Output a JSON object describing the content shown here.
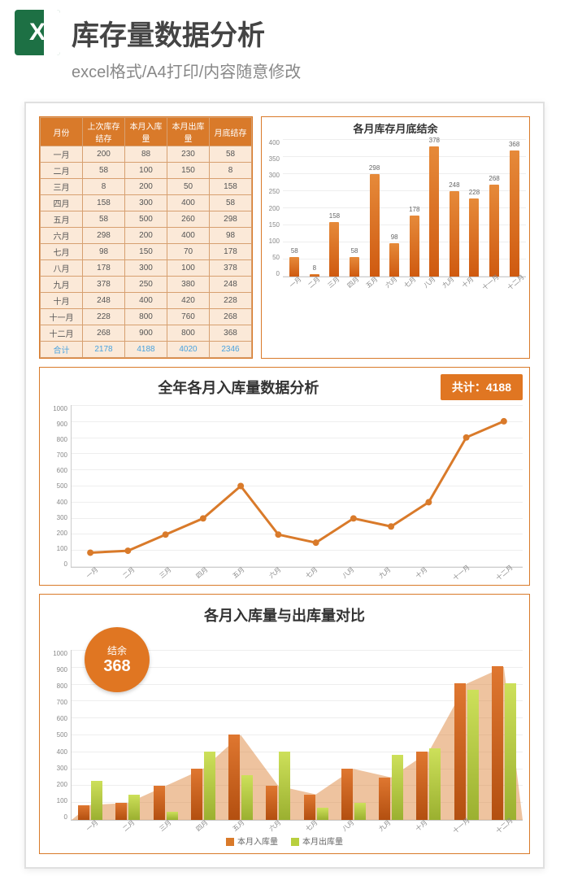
{
  "header": {
    "icon_letter": "X",
    "title": "库存量数据分析",
    "subtitle": "excel格式/A4打印/内容随意修改"
  },
  "table": {
    "columns": [
      "月份",
      "上次库存结存",
      "本月入库量",
      "本月出库量",
      "月底结存"
    ],
    "rows": [
      [
        "一月",
        "200",
        "88",
        "230",
        "58"
      ],
      [
        "二月",
        "58",
        "100",
        "150",
        "8"
      ],
      [
        "三月",
        "8",
        "200",
        "50",
        "158"
      ],
      [
        "四月",
        "158",
        "300",
        "400",
        "58"
      ],
      [
        "五月",
        "58",
        "500",
        "260",
        "298"
      ],
      [
        "六月",
        "298",
        "200",
        "400",
        "98"
      ],
      [
        "七月",
        "98",
        "150",
        "70",
        "178"
      ],
      [
        "八月",
        "178",
        "300",
        "100",
        "378"
      ],
      [
        "九月",
        "378",
        "250",
        "380",
        "248"
      ],
      [
        "十月",
        "248",
        "400",
        "420",
        "228"
      ],
      [
        "十一月",
        "228",
        "800",
        "760",
        "268"
      ],
      [
        "十二月",
        "268",
        "900",
        "800",
        "368"
      ]
    ],
    "total_row": [
      "合计",
      "2178",
      "4188",
      "4020",
      "2346"
    ]
  },
  "chart1": {
    "title": "各月库存月底结余",
    "type": "bar",
    "categories": [
      "一月",
      "二月",
      "三月",
      "四月",
      "五月",
      "六月",
      "七月",
      "八月",
      "九月",
      "十月",
      "十一月",
      "十二月"
    ],
    "values": [
      58,
      8,
      158,
      58,
      298,
      98,
      178,
      378,
      248,
      228,
      268,
      368
    ],
    "ymax": 400,
    "ytick_step": 50,
    "bar_color": "#d9752a",
    "grid_color": "#eeeeee"
  },
  "chart2": {
    "title": "全年各月入库量数据分析",
    "total_label": "共计：",
    "total_value": "4188",
    "type": "line",
    "categories": [
      "一月",
      "二月",
      "三月",
      "四月",
      "五月",
      "六月",
      "七月",
      "八月",
      "九月",
      "十月",
      "十一月",
      "十二月"
    ],
    "values": [
      88,
      100,
      200,
      300,
      500,
      200,
      150,
      300,
      250,
      400,
      800,
      900
    ],
    "ymax": 1000,
    "ytick_step": 100,
    "line_color": "#d97a2a",
    "marker_color": "#d97a2a"
  },
  "chart3": {
    "title": "各月入库量与出库量对比",
    "badge_label": "结余",
    "badge_value": "368",
    "type": "bar-area-combo",
    "categories": [
      "一月",
      "二月",
      "三月",
      "四月",
      "五月",
      "六月",
      "七月",
      "八月",
      "九月",
      "十月",
      "十一月",
      "十二月"
    ],
    "series1_name": "本月入库量",
    "series1": [
      88,
      100,
      200,
      300,
      500,
      200,
      150,
      300,
      250,
      400,
      800,
      900
    ],
    "series1_color": "#d97a2a",
    "series2_name": "本月出库量",
    "series2": [
      230,
      150,
      50,
      400,
      260,
      400,
      70,
      100,
      380,
      420,
      760,
      800
    ],
    "series2_color": "#b8cf3e",
    "ymax": 1000,
    "ytick_step": 100
  }
}
